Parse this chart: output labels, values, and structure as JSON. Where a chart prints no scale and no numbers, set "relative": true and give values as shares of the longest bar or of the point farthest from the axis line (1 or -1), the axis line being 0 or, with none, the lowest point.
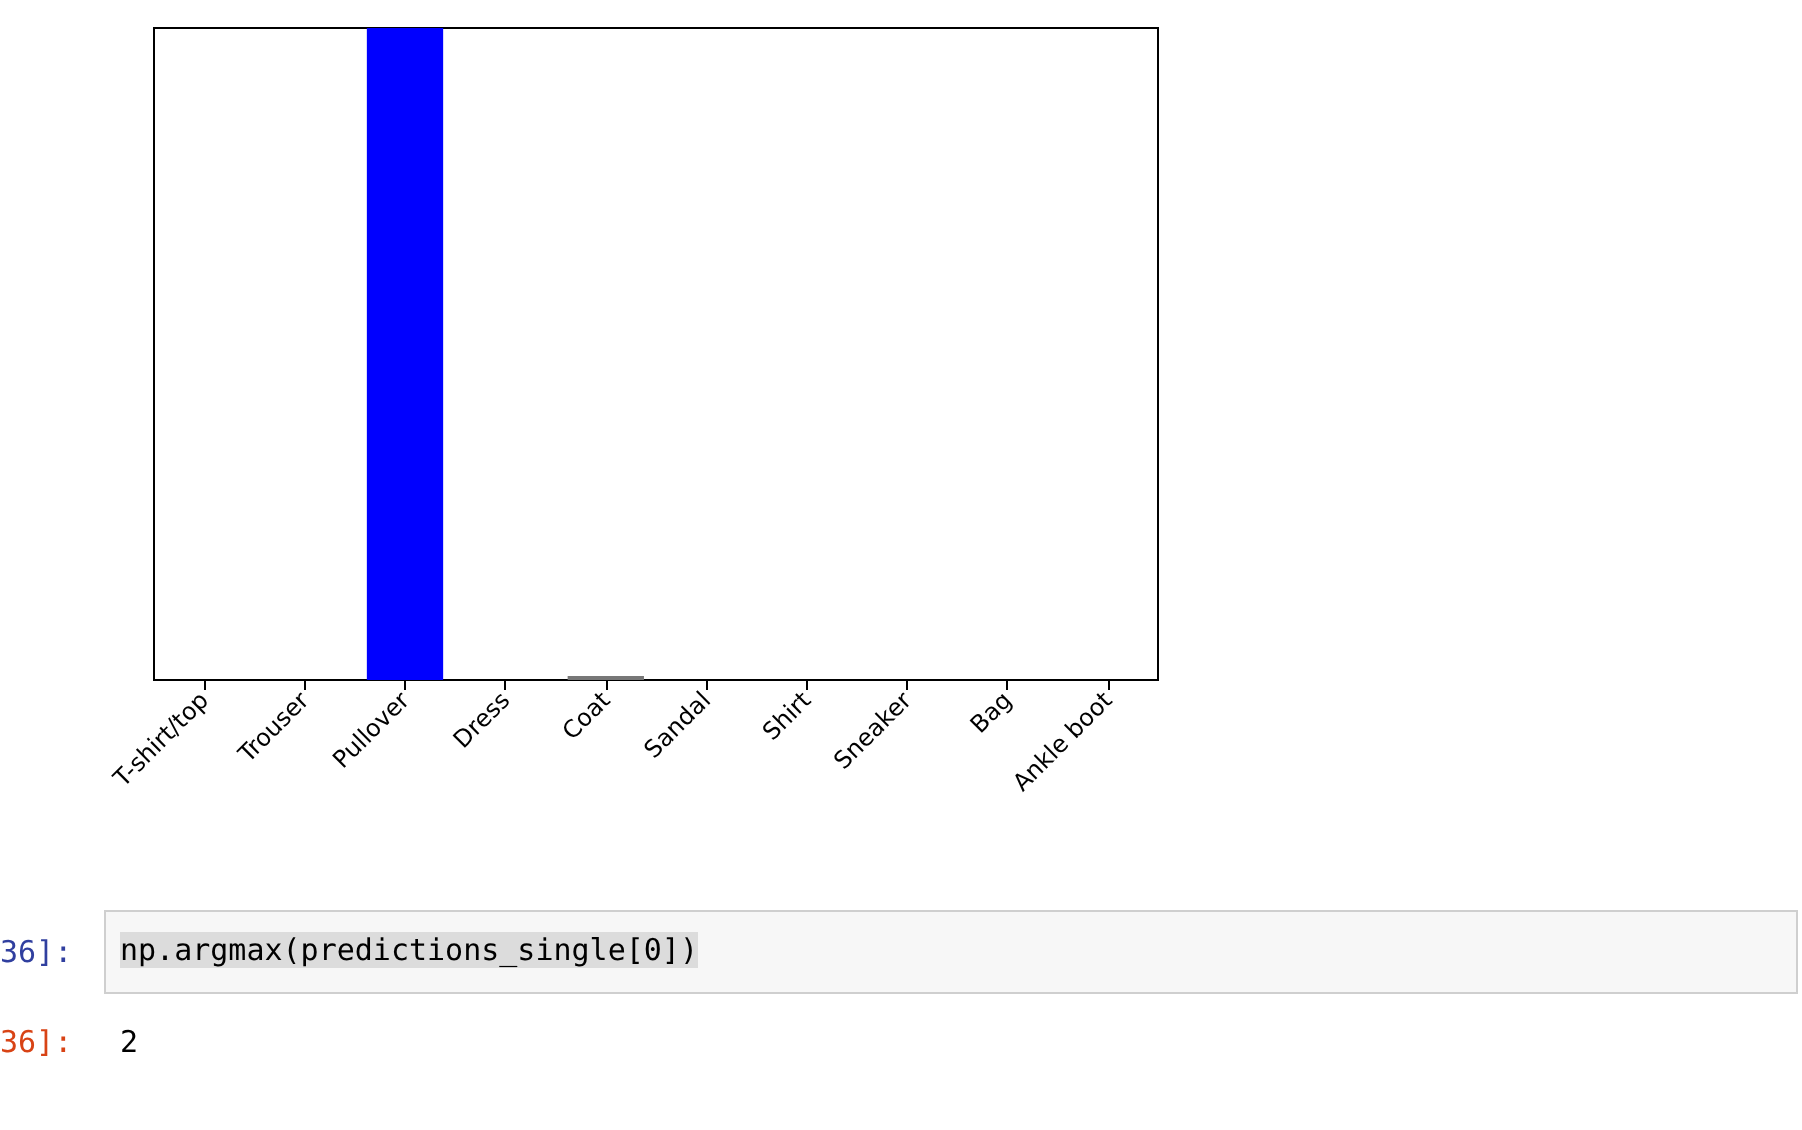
{
  "chart_data": {
    "type": "bar",
    "relative": true,
    "categories": [
      "T-shirt/top",
      "Trouser",
      "Pullover",
      "Dress",
      "Coat",
      "Sandal",
      "Shirt",
      "Sneaker",
      "Bag",
      "Ankle boot"
    ],
    "values": [
      0,
      0,
      1,
      0,
      0.006,
      0,
      0,
      0,
      0,
      0
    ],
    "colors": [
      "#777777",
      "#777777",
      "#0000ff",
      "#777777",
      "#777777",
      "#777777",
      "#777777",
      "#777777",
      "#777777",
      "#777777"
    ],
    "grid": false,
    "tick_labels": "x",
    "annotations": [
      "36]:",
      "np.argmax(predictions_single[0])",
      "36]:",
      "2"
    ]
  }
}
